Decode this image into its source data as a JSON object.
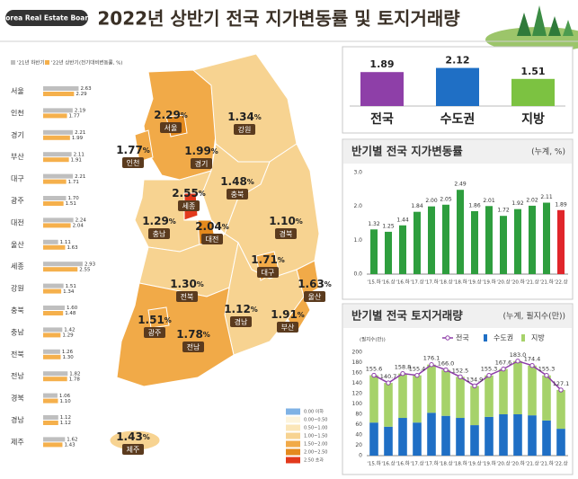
{
  "header": {
    "logo": "Korea Real Estate Board",
    "title": "2022년 상반기 전국 지가변동률 및 토지거래량"
  },
  "map": {
    "unit": "%",
    "regions": [
      {
        "name": "경기",
        "value": "1.99",
        "color": "#f1aa48"
      },
      {
        "name": "강원",
        "value": "1.34",
        "color": "#f7d391"
      },
      {
        "name": "충남",
        "value": "1.29",
        "color": "#f7d391"
      },
      {
        "name": "충북",
        "value": "1.48",
        "color": "#f7d391"
      },
      {
        "name": "경북",
        "value": "1.10",
        "color": "#f7d391"
      },
      {
        "name": "전북",
        "value": "1.30",
        "color": "#f7d391"
      },
      {
        "name": "경남",
        "value": "1.12",
        "color": "#f7d391"
      },
      {
        "name": "전남",
        "value": "1.78",
        "color": "#f1aa48"
      },
      {
        "name": "인천",
        "value": "1.77",
        "color": "#f1aa48"
      },
      {
        "name": "서울",
        "value": "2.29",
        "color": "#e48a1e"
      },
      {
        "name": "세종",
        "value": "2.55",
        "color": "#e2391c"
      },
      {
        "name": "대전",
        "value": "2.04",
        "color": "#e48a1e"
      },
      {
        "name": "대구",
        "value": "1.71",
        "color": "#f1aa48"
      },
      {
        "name": "울산",
        "value": "1.63",
        "color": "#f1aa48"
      },
      {
        "name": "부산",
        "value": "1.91",
        "color": "#f1aa48"
      },
      {
        "name": "광주",
        "value": "1.51",
        "color": "#f1aa48"
      },
      {
        "name": "제주",
        "value": "1.43",
        "color": "#f7d391"
      }
    ],
    "legend": [
      {
        "label": "0.00 이하",
        "color": "#7fb2e5"
      },
      {
        "label": "0.00~0.50",
        "color": "#fdf4dc"
      },
      {
        "label": "0.50~1.00",
        "color": "#fbe6b8"
      },
      {
        "label": "1.00~1.50",
        "color": "#f7d391"
      },
      {
        "label": "1.50~2.00",
        "color": "#f1aa48"
      },
      {
        "label": "2.00~2.50",
        "color": "#e48a1e"
      },
      {
        "label": "2.50 초과",
        "color": "#e2391c"
      }
    ]
  },
  "chart_data": [
    {
      "type": "hbar",
      "note": "(전기대비변동률, %)",
      "categories": [
        "서울",
        "인천",
        "경기",
        "부산",
        "대구",
        "광주",
        "대전",
        "울산",
        "세종",
        "강원",
        "충북",
        "충남",
        "전북",
        "전남",
        "경북",
        "경남",
        "제주"
      ],
      "series": [
        {
          "name": "'21년 하반기",
          "color": "#bfbfbf",
          "values": [
            2.63,
            2.19,
            2.21,
            2.11,
            2.21,
            1.7,
            2.24,
            1.11,
            2.93,
            1.51,
            1.6,
            1.42,
            1.26,
            1.82,
            1.06,
            1.12,
            1.62
          ],
          "value_labels": [
            "2.63",
            "2.19",
            "2.21",
            "2.11",
            "2.21",
            "1.70",
            "2.24",
            "1.11",
            "2.93",
            "1.51",
            "1.60",
            "1.42",
            "1.26",
            "1.82",
            "1.06",
            "1.12",
            "1.62"
          ]
        },
        {
          "name": "'22년 상반기",
          "color": "#f5b04c",
          "values": [
            2.29,
            1.77,
            1.99,
            1.91,
            1.71,
            1.51,
            2.04,
            1.63,
            2.55,
            1.34,
            1.48,
            1.29,
            1.3,
            1.78,
            1.1,
            1.12,
            1.43
          ],
          "value_labels": [
            "2.29",
            "1.77",
            "1.99",
            "1.91",
            "1.71",
            "1.51",
            "2.04",
            "1.63",
            "2.55",
            "1.34",
            "1.48",
            "1.29",
            "1.30",
            "1.78",
            "1.10",
            "1.12",
            "1.43"
          ]
        }
      ]
    },
    {
      "type": "bar",
      "categories": [
        "전국",
        "수도권",
        "지방"
      ],
      "values": [
        1.89,
        2.12,
        1.51
      ],
      "colors": [
        "#8e3fa8",
        "#1f6fc5",
        "#7cc241"
      ]
    },
    {
      "type": "bar",
      "title": "반기별 전국 지가변동률",
      "unit": "(누계, %)",
      "categories": [
        "'15.하",
        "'16.상",
        "'16.하",
        "'17.상",
        "'17.하",
        "'18.상",
        "'18.하",
        "'19.상",
        "'19.하",
        "'20.상",
        "'20.하",
        "'21.상",
        "'21.하",
        "'22.상"
      ],
      "values": [
        1.32,
        1.25,
        1.44,
        1.84,
        2.0,
        2.05,
        2.49,
        1.86,
        2.01,
        1.72,
        1.92,
        2.02,
        2.11,
        1.89
      ],
      "value_labels": [
        "1.32",
        "1.25",
        "1.44",
        "1.84",
        "2.00",
        "2.05",
        "2.49",
        "1.86",
        "2.01",
        "1.72",
        "1.92",
        "2.02",
        "2.11",
        "1.89"
      ],
      "colors": [
        "#2e9e3e",
        "#2e9e3e",
        "#2e9e3e",
        "#2e9e3e",
        "#2e9e3e",
        "#2e9e3e",
        "#2e9e3e",
        "#2e9e3e",
        "#2e9e3e",
        "#2e9e3e",
        "#2e9e3e",
        "#2e9e3e",
        "#2e9e3e",
        "#e0262b"
      ],
      "ylim": [
        0,
        3.0
      ],
      "yticks": [
        {
          "value": 0,
          "label": "0.0"
        },
        {
          "value": 1,
          "label": "1.0"
        },
        {
          "value": 2,
          "label": "2.0"
        },
        {
          "value": 3,
          "label": "3.0"
        }
      ],
      "grid": false
    },
    {
      "type": "combo",
      "title": "반기별 전국 토지거래량",
      "unit": "(누계, 필지수(만))",
      "y_label": "(필지수(만))",
      "categories": [
        "'15.하",
        "'16.상",
        "'16.하",
        "'17.상",
        "'17.하",
        "'18.상",
        "'18.하",
        "'19.상",
        "'19.하",
        "'20.상",
        "'20.하",
        "'21.상",
        "'21.하",
        "'22.상"
      ],
      "series": [
        {
          "name": "전국",
          "type": "line",
          "color": "#8e3fa8",
          "values": [
            155.6,
            140.7,
            158.8,
            155.4,
            176.1,
            166.0,
            152.5,
            134.9,
            155.3,
            167.6,
            183.0,
            174.4,
            155.3,
            127.1
          ],
          "value_labels": [
            "155.6",
            "140.7",
            "158.8",
            "155.4",
            "176.1",
            "166.0",
            "152.5",
            "134.9",
            "155.3",
            "167.6",
            "183.0",
            "174.4",
            "155.3",
            "127.1"
          ]
        },
        {
          "name": "수도권",
          "type": "bar",
          "color": "#1f6fc5",
          "values": [
            64,
            56,
            73,
            64,
            83,
            77,
            73,
            59,
            75,
            80,
            80,
            78,
            68,
            52
          ]
        },
        {
          "name": "지방",
          "type": "bar",
          "color": "#a6d26a",
          "values": [
            91.6,
            84.7,
            85.8,
            91.4,
            93.1,
            89.0,
            79.5,
            75.9,
            80.3,
            87.6,
            103.0,
            96.4,
            87.3,
            75.1
          ]
        }
      ],
      "ylim": [
        0,
        200
      ],
      "yticks": [
        0,
        20,
        40,
        60,
        80,
        100,
        120,
        140,
        160,
        180,
        200
      ],
      "grid": false
    }
  ]
}
